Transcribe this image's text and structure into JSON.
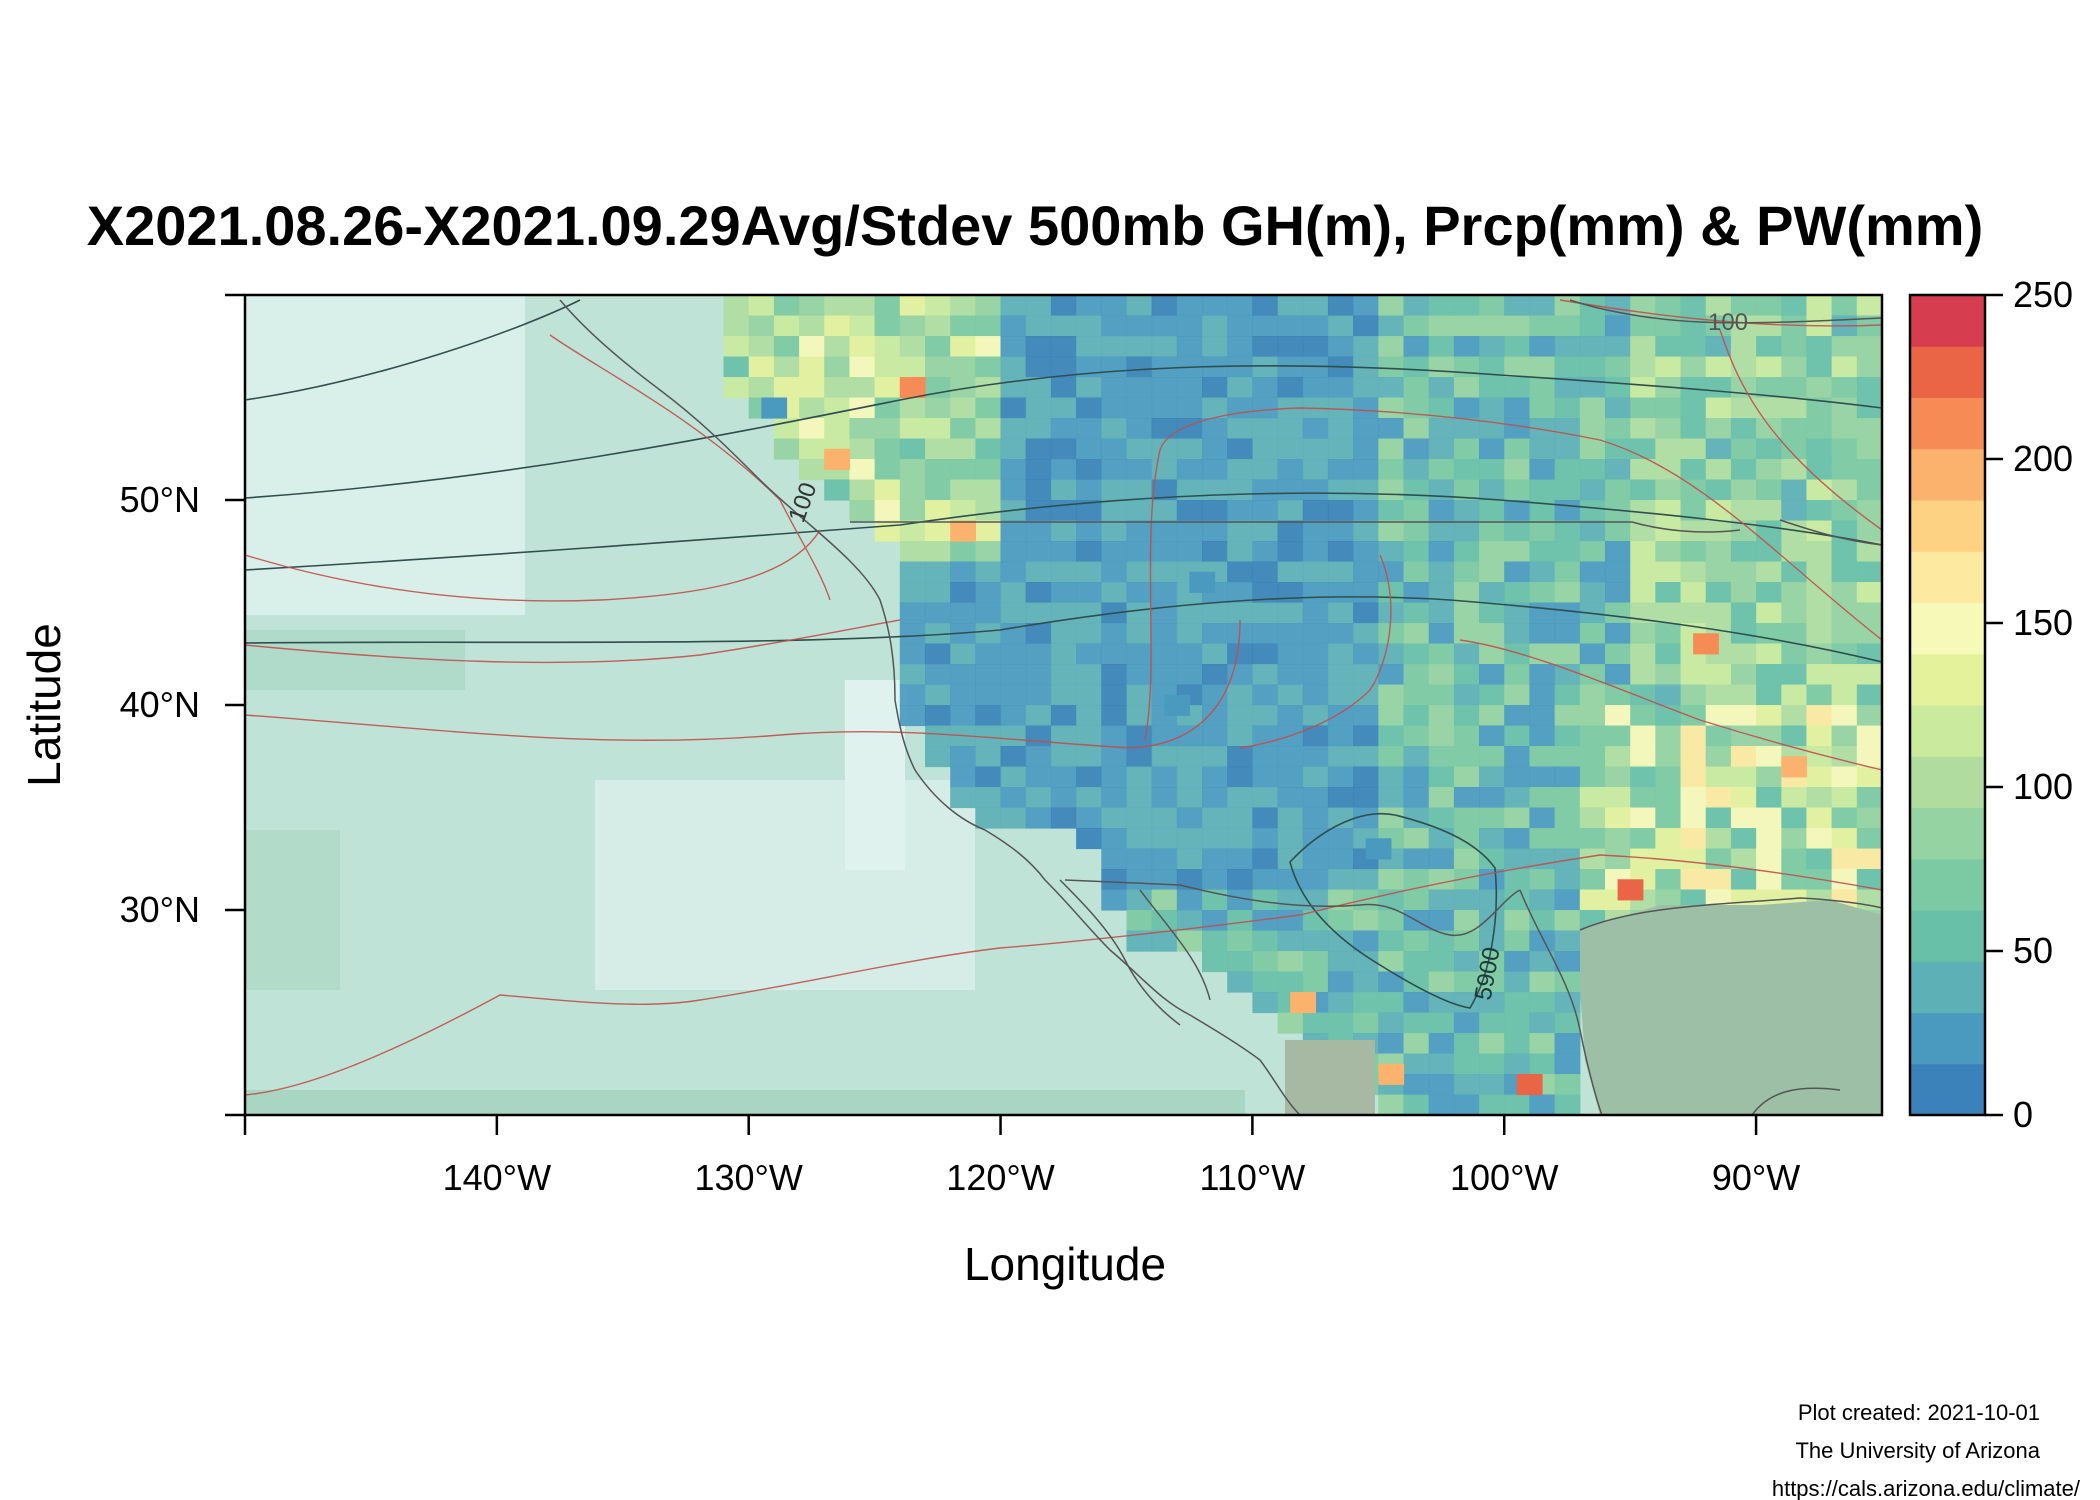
{
  "title": "X2021.08.26-X2021.09.29Avg/Stdev 500mb GH(m), Prcp(mm) & PW(mm)",
  "x_axis": {
    "label": "Longitude",
    "range_deg": [
      -150,
      -85
    ],
    "ticks": [
      {
        "value": -140,
        "label": "140°W"
      },
      {
        "value": -130,
        "label": "130°W"
      },
      {
        "value": -120,
        "label": "120°W"
      },
      {
        "value": -110,
        "label": "110°W"
      },
      {
        "value": -100,
        "label": "100°W"
      },
      {
        "value": -90,
        "label": "90°W"
      }
    ]
  },
  "y_axis": {
    "label": "Latitude",
    "range_deg": [
      20,
      60
    ],
    "ticks": [
      {
        "value": 30,
        "label": "30°N"
      },
      {
        "value": 40,
        "label": "40°N"
      },
      {
        "value": 50,
        "label": "50°N"
      }
    ]
  },
  "colorbar": {
    "range": [
      0,
      250
    ],
    "ticks": [
      {
        "value": 0,
        "label": "0"
      },
      {
        "value": 50,
        "label": "50"
      },
      {
        "value": 100,
        "label": "100"
      },
      {
        "value": 150,
        "label": "150"
      },
      {
        "value": 200,
        "label": "200"
      },
      {
        "value": 250,
        "label": "250"
      }
    ],
    "colors": [
      "#3a82b9",
      "#4a9ac0",
      "#5cb0b6",
      "#68c0a8",
      "#7ccaa3",
      "#96d3a2",
      "#b0dd9f",
      "#caea9d",
      "#e4f29c",
      "#f7f9b8",
      "#fde9a0",
      "#fdd283",
      "#fbb26c",
      "#f68b55",
      "#ea6446",
      "#d63e4f"
    ]
  },
  "contour_labels": {
    "gh_5900": "5900",
    "pw_100_north": "100",
    "pw_100_coast": "100"
  },
  "credits": {
    "line1": "Plot created: 2021-10-01",
    "line2": "The University of Arizona",
    "line3": "https://cals.arizona.edu/climate/"
  },
  "chart_data": {
    "type": "heatmap",
    "title": "X2021.08.26-X2021.09.29Avg/Stdev 500mb GH(m), Prcp(mm) & PW(mm)",
    "xlabel": "Longitude",
    "ylabel": "Latitude",
    "xlim": [
      -150,
      -85
    ],
    "ylim": [
      20,
      60
    ],
    "value_range": [
      0,
      250
    ],
    "grid_cells": [
      {
        "lon": -123.5,
        "lat": 55.5,
        "value": 210
      },
      {
        "lon": -129.0,
        "lat": 54.5,
        "value": 30
      },
      {
        "lon": -126.5,
        "lat": 52.0,
        "value": 200
      },
      {
        "lon": -121.5,
        "lat": 48.5,
        "value": 190
      },
      {
        "lon": -112.0,
        "lat": 46.0,
        "value": 20
      },
      {
        "lon": -113.0,
        "lat": 40.0,
        "value": 25
      },
      {
        "lon": -105.0,
        "lat": 33.0,
        "value": 30
      },
      {
        "lon": -88.5,
        "lat": 37.0,
        "value": 200
      },
      {
        "lon": -92.0,
        "lat": 43.0,
        "value": 210
      },
      {
        "lon": -99.0,
        "lat": 21.5,
        "value": 220
      },
      {
        "lon": -108.0,
        "lat": 25.5,
        "value": 200
      },
      {
        "lon": -104.5,
        "lat": 22.0,
        "value": 190
      },
      {
        "lon": -95.0,
        "lat": 31.0,
        "value": 220
      }
    ],
    "gh_contour_levels": [
      5900
    ],
    "pw_contour_levels": [
      100
    ]
  }
}
